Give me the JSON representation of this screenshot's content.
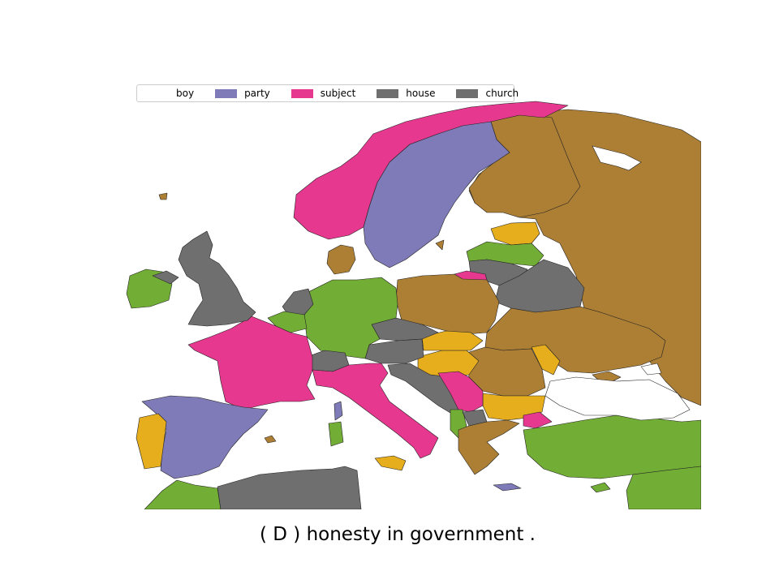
{
  "colors": {
    "boy": "#ffffff",
    "party": "#7f7bb8",
    "subject": "#e7388f",
    "house": "#6f6f6f",
    "church": "#6f6f6f",
    "brown": "#ad7f35",
    "green": "#72ad35",
    "yellow": "#e6ad1c",
    "sea": "#ffffff"
  },
  "legend": {
    "items": [
      {
        "label": "boy",
        "color": "#ffffff"
      },
      {
        "label": "party",
        "color": "#7f7bb8"
      },
      {
        "label": "subject",
        "color": "#e7388f"
      },
      {
        "label": "house",
        "color": "#6f6f6f"
      },
      {
        "label": "church",
        "color": "#6f6f6f"
      }
    ]
  },
  "caption": "( D ) honesty in government ."
}
